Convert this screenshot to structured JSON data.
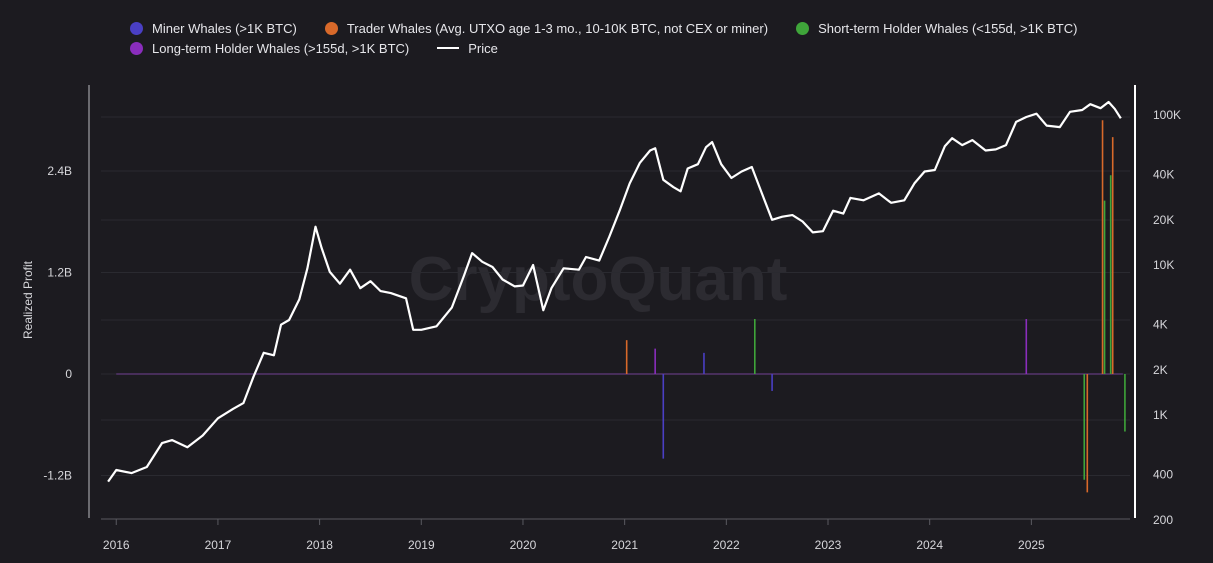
{
  "chart_data": {
    "type": "bar",
    "watermark": "CryptoQuant",
    "left_axis": {
      "label": "Realized Profit",
      "ticks": [
        {
          "value": 2400000000,
          "label": "2.4B"
        },
        {
          "value": 1200000000,
          "label": "1.2B"
        },
        {
          "value": 0,
          "label": "0"
        },
        {
          "value": -1200000000,
          "label": "-1.2B"
        }
      ],
      "ylim": [
        -1750000000,
        3100000000
      ]
    },
    "right_axis": {
      "scale": "log",
      "ticks": [
        {
          "value": 100000,
          "label": "100K"
        },
        {
          "value": 40000,
          "label": "40K"
        },
        {
          "value": 20000,
          "label": "20K"
        },
        {
          "value": 10000,
          "label": "10K"
        },
        {
          "value": 4000,
          "label": "4K"
        },
        {
          "value": 2000,
          "label": "2K"
        },
        {
          "value": 1000,
          "label": "1K"
        },
        {
          "value": 400,
          "label": "400"
        },
        {
          "value": 200,
          "label": "200"
        }
      ]
    },
    "x_axis": {
      "ticks": [
        "2016",
        "2017",
        "2018",
        "2019",
        "2020",
        "2021",
        "2022",
        "2023",
        "2024",
        "2025"
      ],
      "xlim": [
        2015.85,
        2025.97
      ]
    },
    "legend": [
      {
        "name": "Miner Whales (>1K BTC)",
        "color": "#4a3fc4",
        "kind": "dot"
      },
      {
        "name": "Trader Whales (Avg. UTXO age 1-3 mo., 10-10K BTC, not CEX or miner)",
        "color": "#d8692a",
        "kind": "dot"
      },
      {
        "name": "Short-term Holder Whales (<155d, >1K BTC)",
        "color": "#3fa53a",
        "kind": "dot"
      },
      {
        "name": "Long-term Holder Whales (>155d, >1K BTC)",
        "color": "#8a2dbd",
        "kind": "dot"
      },
      {
        "name": "Price",
        "color": "#ffffff",
        "kind": "line"
      }
    ],
    "price_series": {
      "name": "Price",
      "color": "#ffffff",
      "points": [
        [
          2015.92,
          360
        ],
        [
          2016.0,
          430
        ],
        [
          2016.15,
          410
        ],
        [
          2016.3,
          450
        ],
        [
          2016.45,
          650
        ],
        [
          2016.55,
          680
        ],
        [
          2016.7,
          610
        ],
        [
          2016.85,
          730
        ],
        [
          2017.0,
          950
        ],
        [
          2017.15,
          1100
        ],
        [
          2017.25,
          1200
        ],
        [
          2017.35,
          1800
        ],
        [
          2017.45,
          2600
        ],
        [
          2017.55,
          2500
        ],
        [
          2017.62,
          4000
        ],
        [
          2017.7,
          4300
        ],
        [
          2017.8,
          5900
        ],
        [
          2017.88,
          9500
        ],
        [
          2017.96,
          18000
        ],
        [
          2018.02,
          13000
        ],
        [
          2018.1,
          9000
        ],
        [
          2018.2,
          7500
        ],
        [
          2018.3,
          9300
        ],
        [
          2018.4,
          7000
        ],
        [
          2018.5,
          7800
        ],
        [
          2018.6,
          6700
        ],
        [
          2018.7,
          6500
        ],
        [
          2018.85,
          6000
        ],
        [
          2018.92,
          3700
        ],
        [
          2019.0,
          3700
        ],
        [
          2019.15,
          3900
        ],
        [
          2019.3,
          5200
        ],
        [
          2019.42,
          8500
        ],
        [
          2019.5,
          12000
        ],
        [
          2019.6,
          10500
        ],
        [
          2019.7,
          9700
        ],
        [
          2019.8,
          8000
        ],
        [
          2019.92,
          7200
        ],
        [
          2020.0,
          7300
        ],
        [
          2020.1,
          10000
        ],
        [
          2020.2,
          5000
        ],
        [
          2020.28,
          7000
        ],
        [
          2020.4,
          9500
        ],
        [
          2020.55,
          9300
        ],
        [
          2020.62,
          11300
        ],
        [
          2020.75,
          10700
        ],
        [
          2020.85,
          15500
        ],
        [
          2020.95,
          23000
        ],
        [
          2021.05,
          35000
        ],
        [
          2021.15,
          48000
        ],
        [
          2021.25,
          58000
        ],
        [
          2021.3,
          60000
        ],
        [
          2021.38,
          37000
        ],
        [
          2021.48,
          33000
        ],
        [
          2021.55,
          31000
        ],
        [
          2021.62,
          44000
        ],
        [
          2021.72,
          47000
        ],
        [
          2021.8,
          61000
        ],
        [
          2021.86,
          66000
        ],
        [
          2021.95,
          47000
        ],
        [
          2022.05,
          38000
        ],
        [
          2022.15,
          42000
        ],
        [
          2022.25,
          45000
        ],
        [
          2022.35,
          30000
        ],
        [
          2022.45,
          20000
        ],
        [
          2022.55,
          21000
        ],
        [
          2022.65,
          21500
        ],
        [
          2022.75,
          19500
        ],
        [
          2022.85,
          16500
        ],
        [
          2022.95,
          16800
        ],
        [
          2023.05,
          23000
        ],
        [
          2023.15,
          22000
        ],
        [
          2023.22,
          28000
        ],
        [
          2023.35,
          27000
        ],
        [
          2023.5,
          30000
        ],
        [
          2023.62,
          26000
        ],
        [
          2023.75,
          27000
        ],
        [
          2023.85,
          35000
        ],
        [
          2023.95,
          42000
        ],
        [
          2024.05,
          43000
        ],
        [
          2024.15,
          62000
        ],
        [
          2024.22,
          70000
        ],
        [
          2024.32,
          63000
        ],
        [
          2024.42,
          68000
        ],
        [
          2024.55,
          58000
        ],
        [
          2024.65,
          59000
        ],
        [
          2024.75,
          63000
        ],
        [
          2024.85,
          90000
        ],
        [
          2024.95,
          97000
        ],
        [
          2025.05,
          102000
        ],
        [
          2025.15,
          85000
        ],
        [
          2025.28,
          83000
        ],
        [
          2025.38,
          105000
        ],
        [
          2025.5,
          108000
        ],
        [
          2025.58,
          118000
        ],
        [
          2025.68,
          111000
        ],
        [
          2025.76,
          122000
        ],
        [
          2025.82,
          110000
        ],
        [
          2025.88,
          95000
        ]
      ]
    },
    "realized_profit_spikes": [
      {
        "series": "Miner Whales (>1K BTC)",
        "x": 2021.38,
        "value": -1000000000
      },
      {
        "series": "Miner Whales (>1K BTC)",
        "x": 2021.78,
        "value": 250000000
      },
      {
        "series": "Miner Whales (>1K BTC)",
        "x": 2022.45,
        "value": -200000000
      },
      {
        "series": "Trader Whales (Avg. UTXO age 1-3 mo., 10-10K BTC, not CEX or miner)",
        "x": 2021.02,
        "value": 400000000
      },
      {
        "series": "Trader Whales (Avg. UTXO age 1-3 mo., 10-10K BTC, not CEX or miner)",
        "x": 2025.55,
        "value": -1400000000
      },
      {
        "series": "Trader Whales (Avg. UTXO age 1-3 mo., 10-10K BTC, not CEX or miner)",
        "x": 2025.7,
        "value": 3000000000
      },
      {
        "series": "Trader Whales (Avg. UTXO age 1-3 mo., 10-10K BTC, not CEX or miner)",
        "x": 2025.8,
        "value": 2800000000
      },
      {
        "series": "Short-term Holder Whales (<155d, >1K BTC)",
        "x": 2022.28,
        "value": 650000000
      },
      {
        "series": "Short-term Holder Whales (<155d, >1K BTC)",
        "x": 2025.52,
        "value": -1250000000
      },
      {
        "series": "Short-term Holder Whales (<155d, >1K BTC)",
        "x": 2025.72,
        "value": 2050000000
      },
      {
        "series": "Short-term Holder Whales (<155d, >1K BTC)",
        "x": 2025.78,
        "value": 2350000000
      },
      {
        "series": "Short-term Holder Whales (<155d, >1K BTC)",
        "x": 2025.92,
        "value": -680000000
      },
      {
        "series": "Long-term Holder Whales (>155d, >1K BTC)",
        "x": 2021.3,
        "value": 300000000
      },
      {
        "series": "Long-term Holder Whales (>155d, >1K BTC)",
        "x": 2024.95,
        "value": 650000000
      }
    ]
  }
}
